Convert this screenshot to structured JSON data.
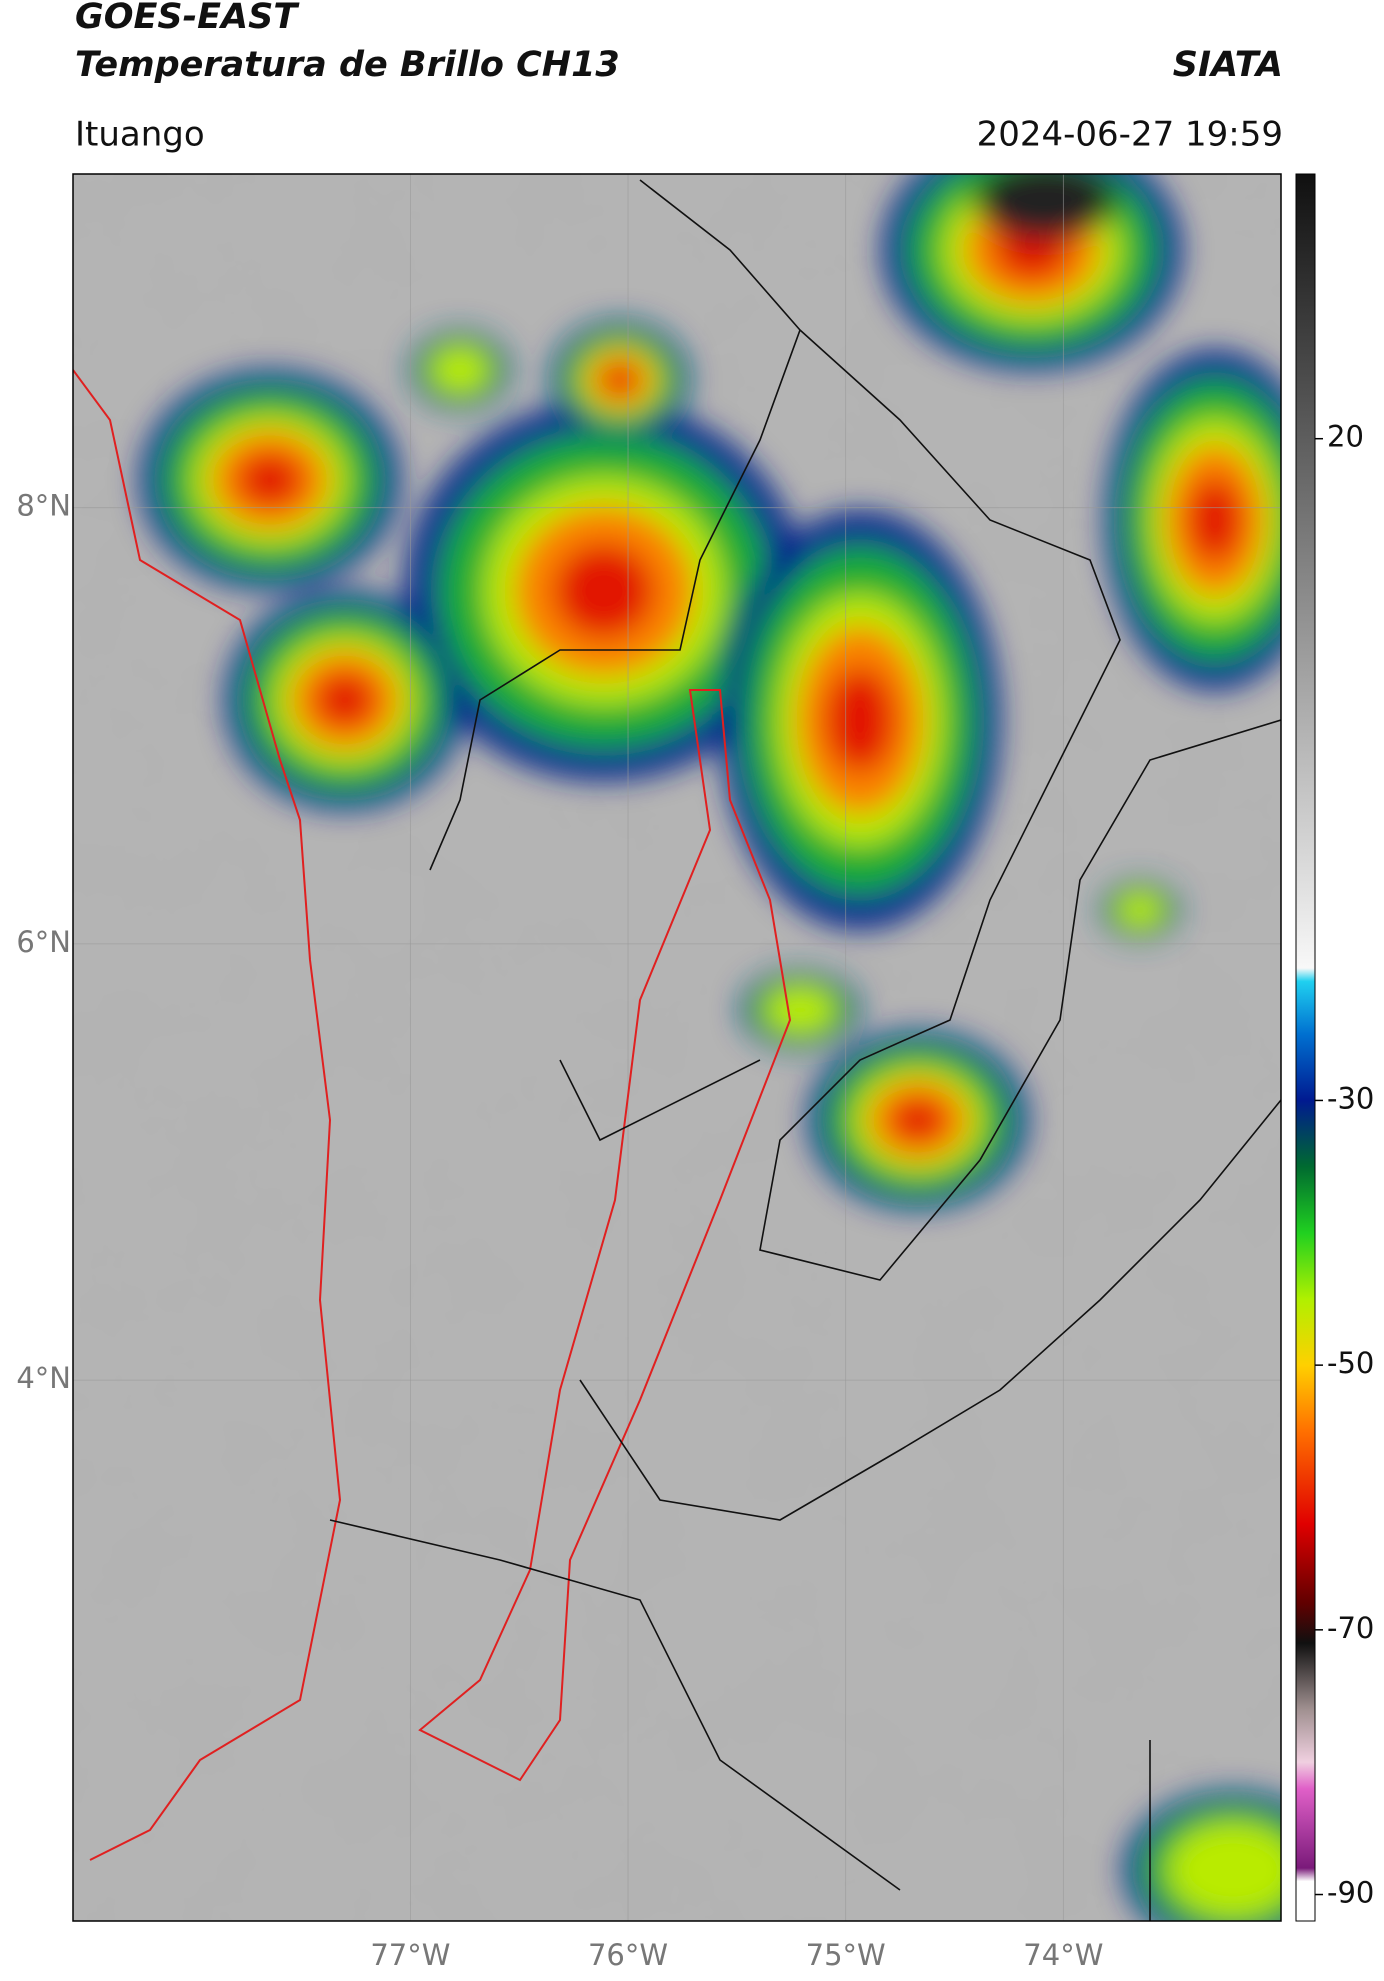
{
  "header": {
    "title_lines": [
      "GOES-EAST",
      "Temperatura de Brillo CH13"
    ],
    "org": "SIATA",
    "location": "Ituango",
    "datetime": "2024-06-27 19:59"
  },
  "map": {
    "xlim": [
      -78.55,
      -73.0
    ],
    "ylim": [
      1.52,
      9.53
    ],
    "xticks": [
      {
        "value": -77,
        "label": "77°W"
      },
      {
        "value": -76,
        "label": "76°W"
      },
      {
        "value": -75,
        "label": "75°W"
      },
      {
        "value": -74,
        "label": "74°W"
      }
    ],
    "yticks": [
      {
        "value": 8,
        "label": "8°N"
      },
      {
        "value": 6,
        "label": "6°N"
      },
      {
        "value": 4,
        "label": "4°N"
      }
    ],
    "grid": true
  },
  "colorbar": {
    "lim": [
      -92,
      40
    ],
    "ticks": [
      20,
      -30,
      -50,
      -70,
      -90
    ],
    "stops": [
      {
        "value": -92,
        "color": "#ffffff"
      },
      {
        "value": -89,
        "color": "#ffffff"
      },
      {
        "value": -88,
        "color": "#7a1a7a"
      },
      {
        "value": -82,
        "color": "#e060c8"
      },
      {
        "value": -80,
        "color": "#f0d0e0"
      },
      {
        "value": -76,
        "color": "#a09090"
      },
      {
        "value": -71,
        "color": "#101010"
      },
      {
        "value": -68,
        "color": "#600000"
      },
      {
        "value": -62,
        "color": "#e00000"
      },
      {
        "value": -55,
        "color": "#ff7000"
      },
      {
        "value": -50,
        "color": "#ffd000"
      },
      {
        "value": -45,
        "color": "#b0f000"
      },
      {
        "value": -40,
        "color": "#20d020"
      },
      {
        "value": -35,
        "color": "#006a30"
      },
      {
        "value": -30,
        "color": "#001a90"
      },
      {
        "value": -25,
        "color": "#0070d0"
      },
      {
        "value": -21,
        "color": "#20d0f0"
      },
      {
        "value": -20,
        "color": "#f8f8f8"
      },
      {
        "value": 40,
        "color": "#101010"
      }
    ]
  }
}
